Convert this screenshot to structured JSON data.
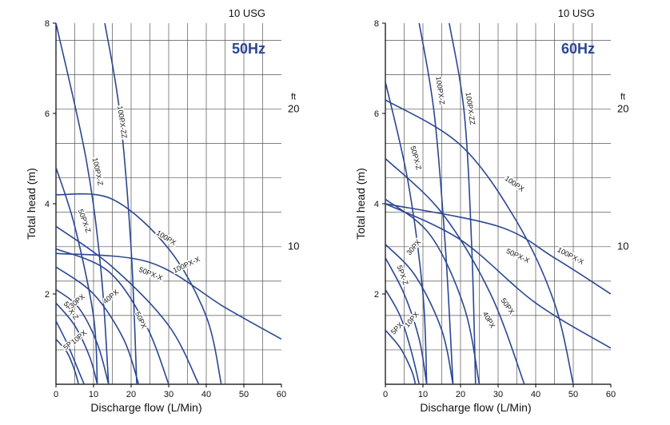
{
  "chart_data": [
    {
      "type": "line",
      "title": "50Hz",
      "xlabel": "Discharge flow (L/Min)",
      "ylabel": "Total head (m)",
      "secondary_x_label": "10 USG",
      "secondary_y_unit": "ft",
      "xlim": [
        0,
        60
      ],
      "ylim": [
        0,
        8
      ],
      "x_ticks": [
        "0",
        "10",
        "20",
        "30",
        "40",
        "50",
        "60"
      ],
      "y_ticks": [
        "2",
        "4",
        "6",
        "8"
      ],
      "ft_ticks": [
        {
          "label": "10",
          "value": 3.05
        },
        {
          "label": "20",
          "value": 6.1
        }
      ],
      "series": [
        {
          "name": "5PX",
          "points": [
            [
              0,
              1.0
            ],
            [
              3,
              0.7
            ],
            [
              5,
              0.3
            ],
            [
              6,
              0
            ]
          ]
        },
        {
          "name": "5PX-Z",
          "points": [
            [
              0,
              1.4
            ],
            [
              3,
              0.9
            ],
            [
              6,
              0.3
            ],
            [
              7.5,
              0
            ]
          ]
        },
        {
          "name": "10PX",
          "points": [
            [
              0,
              1.8
            ],
            [
              5,
              1.3
            ],
            [
              9,
              0.6
            ],
            [
              11,
              0
            ]
          ]
        },
        {
          "name": "30PX",
          "points": [
            [
              0,
              2.1
            ],
            [
              6,
              1.7
            ],
            [
              11,
              0.9
            ],
            [
              14,
              0
            ]
          ]
        },
        {
          "name": "40PX",
          "points": [
            [
              0,
              2.6
            ],
            [
              10,
              2.0
            ],
            [
              18,
              1.0
            ],
            [
              22,
              0
            ]
          ]
        },
        {
          "name": "50PX",
          "points": [
            [
              0,
              3.0
            ],
            [
              14,
              2.5
            ],
            [
              24,
              1.3
            ],
            [
              30,
              0
            ]
          ]
        },
        {
          "name": "50PX-Z",
          "points": [
            [
              0,
              4.8
            ],
            [
              5,
              3.5
            ],
            [
              10,
              1.5
            ],
            [
              11,
              0
            ]
          ]
        },
        {
          "name": "50PX-X",
          "points": [
            [
              0,
              3.5
            ],
            [
              15,
              2.6
            ],
            [
              30,
              1.3
            ],
            [
              38,
              0
            ]
          ]
        },
        {
          "name": "100PX",
          "points": [
            [
              0,
              4.2
            ],
            [
              15,
              4.1
            ],
            [
              30,
              3.0
            ],
            [
              40,
              1.5
            ],
            [
              44,
              0
            ]
          ]
        },
        {
          "name": "100PX-X",
          "points": [
            [
              0,
              2.9
            ],
            [
              25,
              2.7
            ],
            [
              45,
              1.7
            ],
            [
              60,
              1.0
            ]
          ]
        },
        {
          "name": "100PX-Z",
          "points": [
            [
              0,
              8.0
            ],
            [
              8,
              5.0
            ],
            [
              12,
              2.5
            ],
            [
              14,
              0
            ]
          ]
        },
        {
          "name": "100PX-ZZ",
          "points": [
            [
              13,
              8.0
            ],
            [
              17,
              6.0
            ],
            [
              20,
              3.0
            ],
            [
              21.5,
              0
            ]
          ]
        }
      ]
    },
    {
      "type": "line",
      "title": "60Hz",
      "xlabel": "Discharge flow (L/Min)",
      "ylabel": "Total head (m)",
      "secondary_x_label": "10 USG",
      "secondary_y_unit": "ft",
      "xlim": [
        0,
        60
      ],
      "ylim": [
        0,
        8
      ],
      "x_ticks": [
        "0",
        "10",
        "20",
        "30",
        "40",
        "50",
        "60"
      ],
      "y_ticks": [
        "2",
        "4",
        "6",
        "8"
      ],
      "ft_ticks": [
        {
          "label": "10",
          "value": 3.05
        },
        {
          "label": "20",
          "value": 6.1
        }
      ],
      "series": [
        {
          "name": "5PX",
          "points": [
            [
              0,
              1.2
            ],
            [
              4,
              0.8
            ],
            [
              7,
              0.3
            ],
            [
              8,
              0
            ]
          ]
        },
        {
          "name": "5PX-Z",
          "points": [
            [
              0,
              2.1
            ],
            [
              4,
              1.5
            ],
            [
              7,
              0.7
            ],
            [
              9,
              0
            ]
          ]
        },
        {
          "name": "10PX",
          "points": [
            [
              0,
              2.8
            ],
            [
              5,
              2.0
            ],
            [
              9,
              1.0
            ],
            [
              11,
              0
            ]
          ]
        },
        {
          "name": "30PX",
          "points": [
            [
              0,
              3.1
            ],
            [
              8,
              2.4
            ],
            [
              15,
              1.2
            ],
            [
              18,
              0
            ]
          ]
        },
        {
          "name": "40PX",
          "points": [
            [
              0,
              4.1
            ],
            [
              12,
              3.3
            ],
            [
              21,
              1.7
            ],
            [
              25,
              0
            ]
          ]
        },
        {
          "name": "50PX",
          "points": [
            [
              0,
              5.0
            ],
            [
              15,
              3.8
            ],
            [
              28,
              2.0
            ],
            [
              37,
              0
            ]
          ]
        },
        {
          "name": "50PX-Z",
          "points": [
            [
              0,
              6.7
            ],
            [
              6,
              4.5
            ],
            [
              10,
              2.0
            ],
            [
              11,
              0
            ]
          ]
        },
        {
          "name": "50PX-X",
          "points": [
            [
              0,
              4.0
            ],
            [
              20,
              3.2
            ],
            [
              40,
              1.8
            ],
            [
              60,
              0.8
            ]
          ]
        },
        {
          "name": "100PX",
          "points": [
            [
              0,
              6.3
            ],
            [
              20,
              5.3
            ],
            [
              35,
              3.6
            ],
            [
              45,
              1.8
            ],
            [
              50,
              0
            ]
          ]
        },
        {
          "name": "100PX-X",
          "points": [
            [
              0,
              4.0
            ],
            [
              30,
              3.5
            ],
            [
              45,
              2.8
            ],
            [
              60,
              2.0
            ]
          ]
        },
        {
          "name": "100PX-Z",
          "points": [
            [
              9,
              8.0
            ],
            [
              13,
              6.0
            ],
            [
              16,
              3.0
            ],
            [
              18,
              0
            ]
          ]
        },
        {
          "name": "100PX-ZZ",
          "points": [
            [
              17,
              8.0
            ],
            [
              21,
              6.0
            ],
            [
              23,
              3.0
            ],
            [
              24,
              0
            ]
          ]
        }
      ]
    }
  ]
}
